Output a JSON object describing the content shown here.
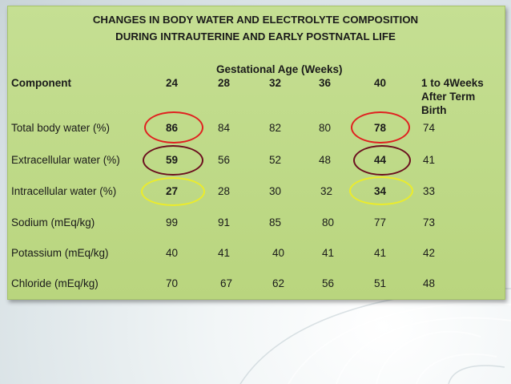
{
  "title_line1": "CHANGES IN BODY WATER AND ELECTROLYTE COMPOSITION",
  "title_line2": "DURING INTRAUTERINE AND EARLY POSTNATAL LIFE",
  "group_header": "Gestational Age (Weeks)",
  "columns": {
    "component": "Component",
    "c24": "24",
    "c28": "28",
    "c32": "32",
    "c36": "36",
    "c40": "40",
    "c_post_line1": "1 to 4Weeks",
    "c_post_line2": "After Term",
    "c_post_line3": "Birth"
  },
  "rows": [
    {
      "label": "Total body water (%)",
      "v24": "86",
      "v28": "84",
      "v32": "82",
      "v36": "80",
      "v40": "78",
      "vpost": "74"
    },
    {
      "label": "Extracellular water (%)",
      "v24": "59",
      "v28": "56",
      "v32": "52",
      "v36": "48",
      "v40": "44",
      "vpost": "41"
    },
    {
      "label": "Intracellular water (%)",
      "v24": "27",
      "v28": "28",
      "v32": "30",
      "v36": "32",
      "v40": "34",
      "vpost": "33"
    },
    {
      "label": "Sodium (mEq/kg)",
      "v24": "99",
      "v28": "91",
      "v32": "85",
      "v36": "80",
      "v40": "77",
      "vpost": "73"
    },
    {
      "label": "Potassium (mEq/kg)",
      "v24": "40",
      "v28": "41",
      "v32": "40",
      "v36": "41",
      "v40": "41",
      "vpost": "42"
    },
    {
      "label": "Chloride (mEq/kg)",
      "v24": "70",
      "v28": "67",
      "v32": "62",
      "v36": "56",
      "v40": "51",
      "vpost": "48"
    }
  ],
  "highlight_colors": {
    "red": "#e02020",
    "maroon": "#6b0f1e",
    "yellow": "#ecec2a"
  },
  "panel_color": "#c5df93"
}
